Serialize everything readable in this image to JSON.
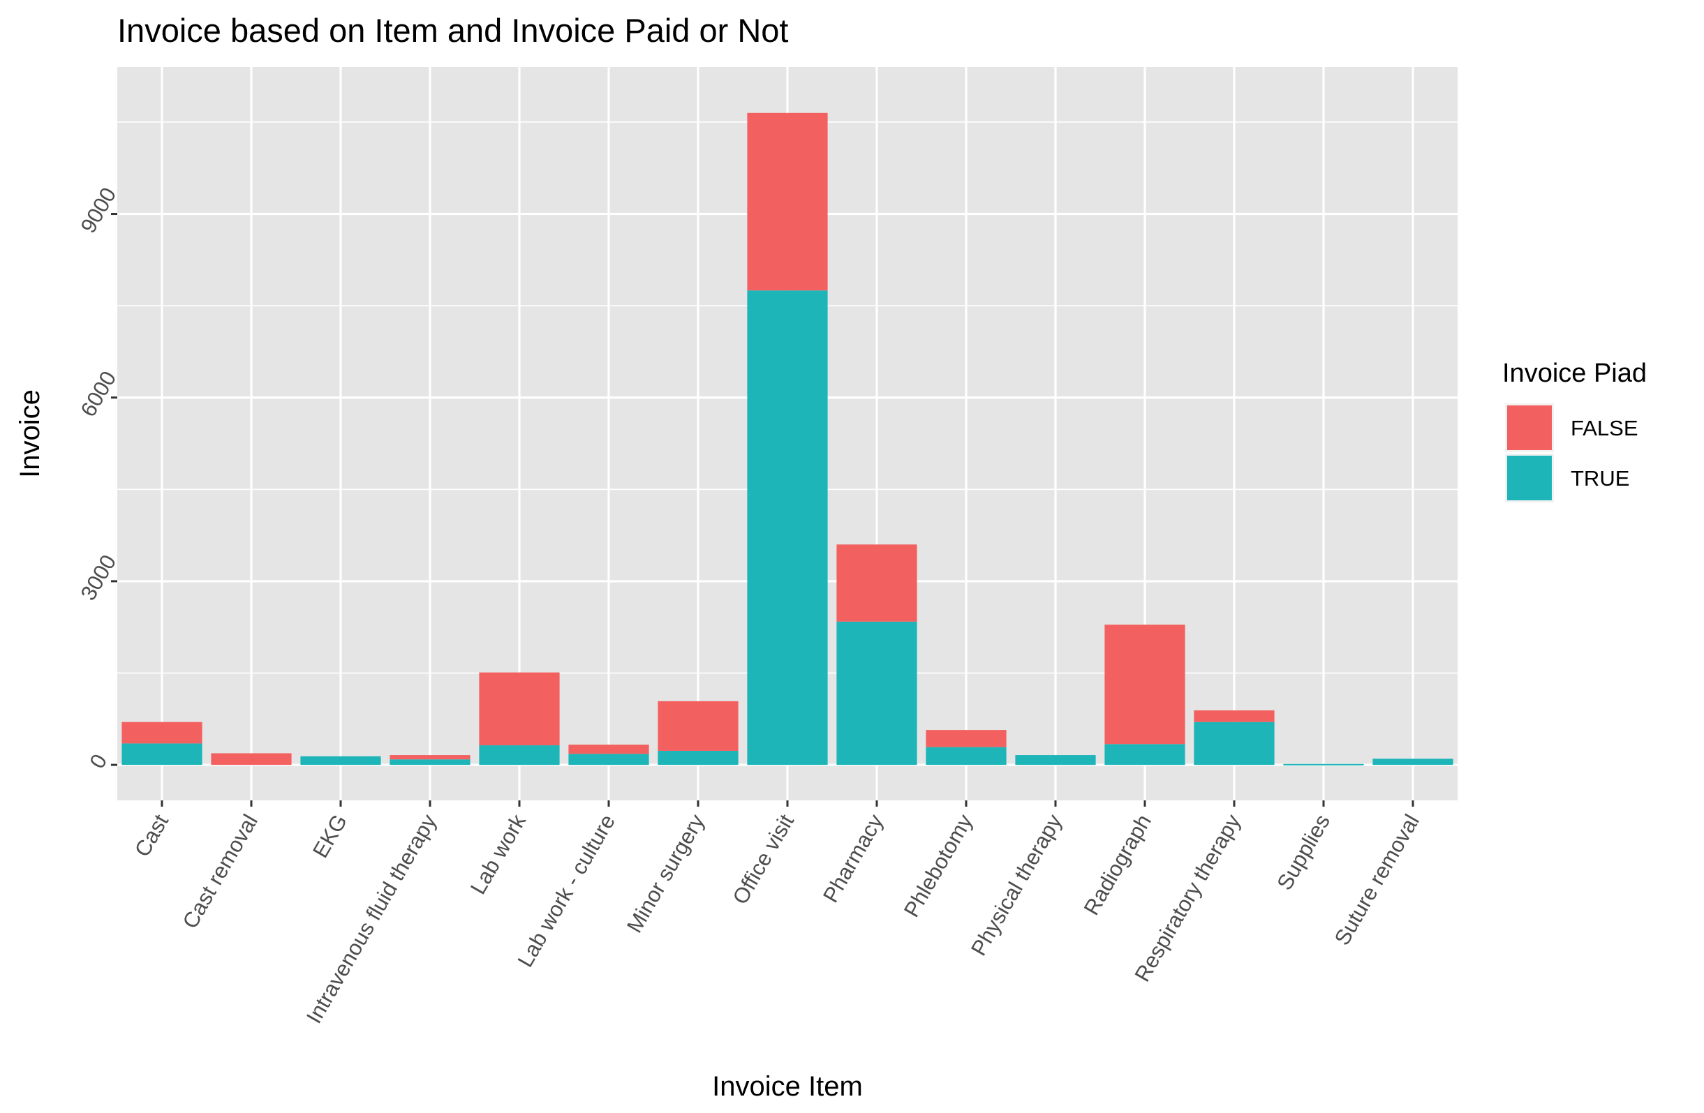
{
  "chart_data": {
    "type": "bar",
    "stacked": true,
    "title": "Invoice based on Item and Invoice Paid or Not",
    "xlabel": "Invoice Item",
    "ylabel": "Invoice",
    "categories": [
      "Cast",
      "Cast removal",
      "EKG",
      "Intravenous fluid therapy",
      "Lab work",
      "Lab work - culture",
      "Minor surgery",
      "Office visit",
      "Pharmacy",
      "Phlebotomy",
      "Physical therapy",
      "Radiograph",
      "Respiratory therapy",
      "Supplies",
      "Suture removal"
    ],
    "series": [
      {
        "name": "TRUE",
        "color": "#1DB5B8",
        "values": [
          350,
          0,
          140,
          90,
          320,
          180,
          230,
          7750,
          2340,
          290,
          160,
          340,
          700,
          15,
          100
        ]
      },
      {
        "name": "FALSE",
        "color": "#F26160",
        "values": [
          350,
          190,
          0,
          70,
          1190,
          150,
          810,
          2900,
          1260,
          280,
          0,
          1950,
          190,
          0,
          0
        ]
      }
    ],
    "yticks": [
      0,
      3000,
      6000,
      9000
    ],
    "ytick_labels": [
      "0",
      "3000",
      "6000",
      "9000"
    ],
    "ylim": [
      -580,
      11400
    ],
    "grid": true,
    "panel_background": "#E5E5E5",
    "grid_color": "#FFFFFF",
    "legend": {
      "title": "Invoice Piad",
      "position": "right",
      "entries": [
        "FALSE",
        "TRUE"
      ]
    }
  }
}
